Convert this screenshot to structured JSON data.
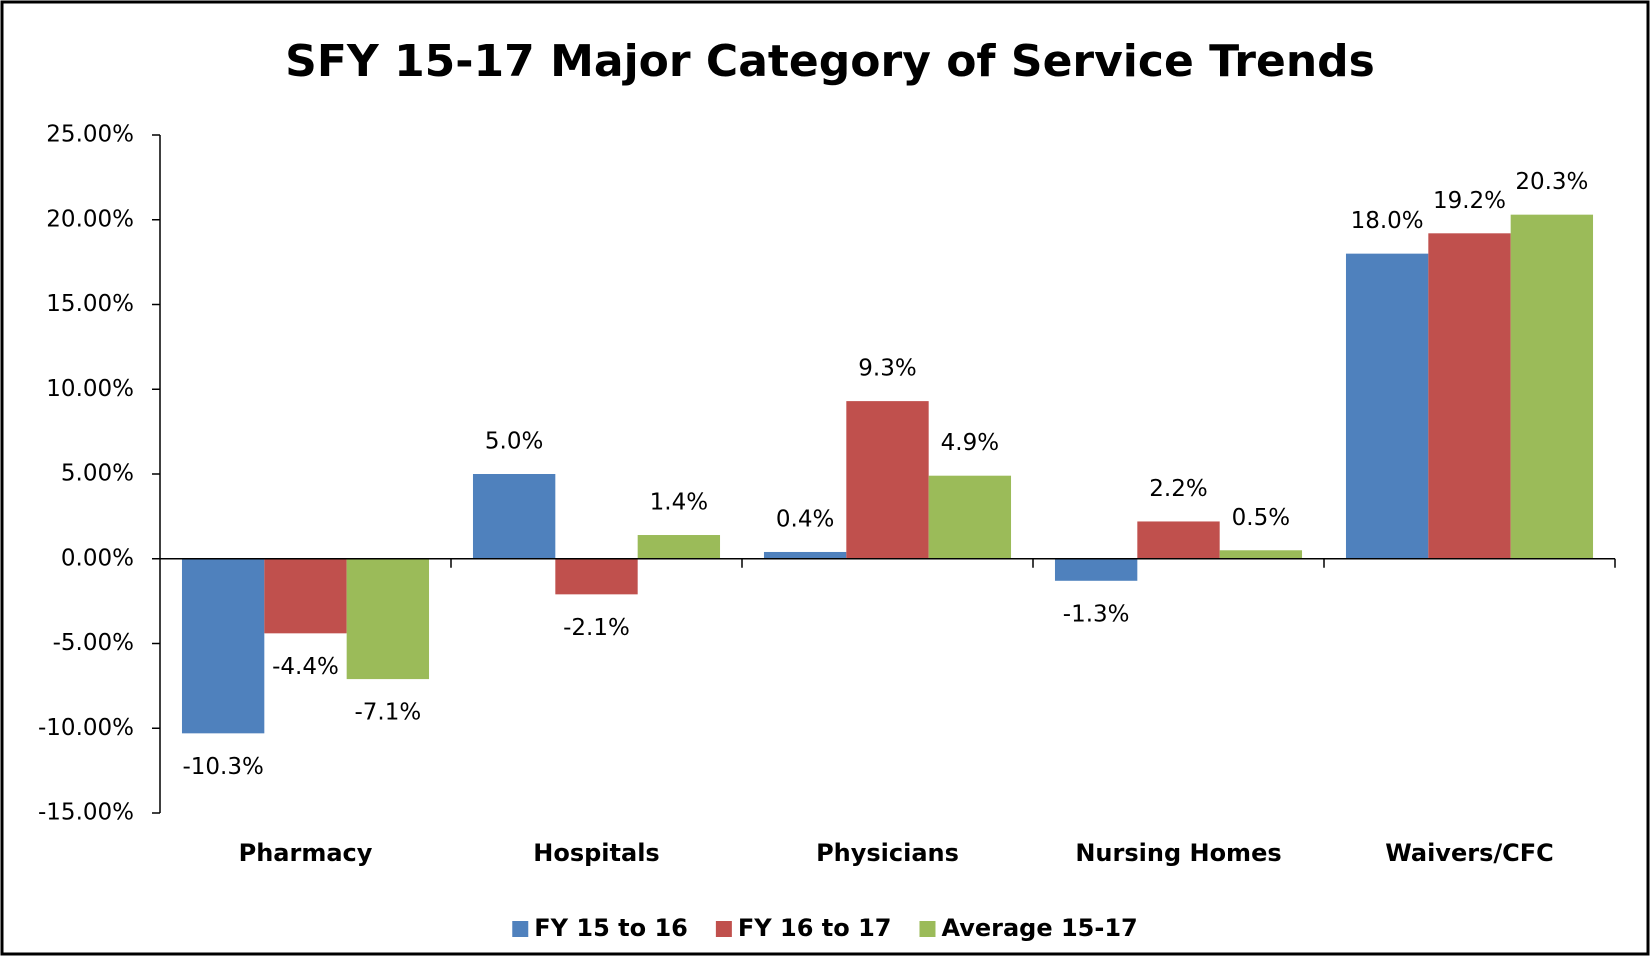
{
  "chart_data": {
    "type": "bar",
    "title": "SFY 15-17 Major Category of Service Trends",
    "categories": [
      "Pharmacy",
      "Hospitals",
      "Physicians",
      "Nursing Homes",
      "Waivers/CFC"
    ],
    "series": [
      {
        "name": "FY 15 to 16",
        "color": "#4f81bd",
        "values": [
          -10.3,
          5.0,
          0.4,
          -1.3,
          18.0
        ],
        "value_labels": [
          "-10.3%",
          "5.0%",
          "0.4%",
          "-1.3%",
          "18.0%"
        ]
      },
      {
        "name": "FY 16 to 17",
        "color": "#c0504d",
        "values": [
          -4.4,
          -2.1,
          9.3,
          2.2,
          19.2
        ],
        "value_labels": [
          "-4.4%",
          "-2.1%",
          "9.3%",
          "2.2%",
          "19.2%"
        ]
      },
      {
        "name": "Average 15-17",
        "color": "#9bbb59",
        "values": [
          -7.1,
          1.4,
          4.9,
          0.5,
          20.3
        ],
        "value_labels": [
          "-7.1%",
          "1.4%",
          "4.9%",
          "0.5%",
          "20.3%"
        ]
      }
    ],
    "ylim": [
      -15,
      25
    ],
    "yticks": [
      {
        "value": -15,
        "label": "-15.00%"
      },
      {
        "value": -10,
        "label": "-10.00%"
      },
      {
        "value": -5,
        "label": "-5.00%"
      },
      {
        "value": 0,
        "label": "0.00%"
      },
      {
        "value": 5,
        "label": "5.00%"
      },
      {
        "value": 10,
        "label": "10.00%"
      },
      {
        "value": 15,
        "label": "15.00%"
      },
      {
        "value": 20,
        "label": "20.00%"
      },
      {
        "value": 25,
        "label": "25.00%"
      }
    ],
    "grid": false,
    "legend": "bottom"
  }
}
